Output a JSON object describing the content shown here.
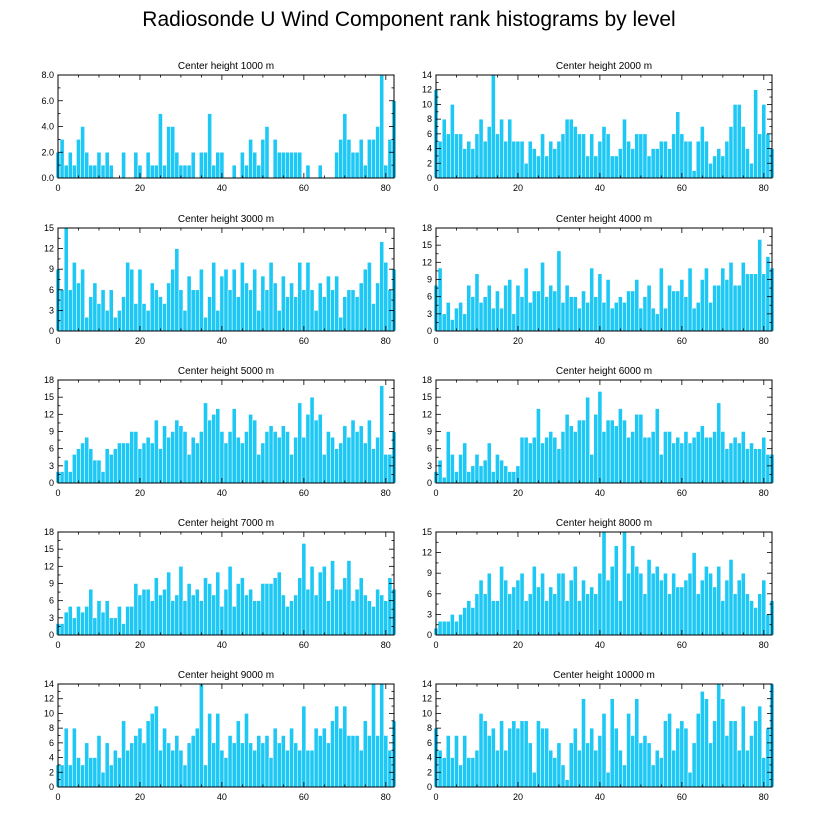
{
  "title": "Radiosonde U Wind Component rank histograms by level",
  "colors": {
    "bar": "#1ec8f5",
    "bar_edge": "#ffffff",
    "axis": "#000000"
  },
  "chart_data": [
    {
      "type": "bar",
      "title": "Center height 1000 m",
      "xlim": [
        0,
        82
      ],
      "ylim": [
        0,
        8
      ],
      "xticks": [
        "0",
        "20",
        "40",
        "60",
        "80"
      ],
      "yticks": [
        "0.0",
        "2.0",
        "4.0",
        "6.0",
        "8.0"
      ],
      "values": [
        2,
        3,
        1,
        2,
        1,
        3,
        4,
        2,
        1,
        1,
        2,
        1,
        2,
        1,
        0,
        0,
        2,
        0,
        0,
        2,
        1,
        0,
        2,
        1,
        1,
        5,
        1,
        4,
        4,
        2,
        1,
        1,
        1,
        2,
        0,
        2,
        2,
        5,
        1,
        2,
        2,
        0,
        0,
        1,
        0,
        2,
        1,
        3,
        2,
        1,
        3,
        4,
        0,
        3,
        2,
        2,
        2,
        2,
        2,
        2,
        0,
        1,
        0,
        0,
        1,
        0,
        0,
        0,
        2,
        3,
        5,
        3,
        2,
        2,
        3,
        1,
        3,
        3,
        4,
        8,
        1,
        3,
        6
      ]
    },
    {
      "type": "bar",
      "title": "Center height 2000 m",
      "xlim": [
        0,
        82
      ],
      "ylim": [
        0,
        14
      ],
      "xticks": [
        "0",
        "20",
        "40",
        "60",
        "80"
      ],
      "yticks": [
        "0",
        "2",
        "4",
        "6",
        "8",
        "10",
        "12",
        "14"
      ],
      "values": [
        12,
        5,
        8,
        6,
        10,
        6,
        6,
        4,
        5,
        4,
        6,
        8,
        5,
        7,
        14,
        6,
        8,
        5,
        8,
        5,
        5,
        5,
        2,
        5,
        4,
        3,
        6,
        3,
        5,
        4,
        5,
        6,
        8,
        8,
        7,
        6,
        6,
        3,
        6,
        3,
        5,
        7,
        6,
        3,
        3,
        4,
        8,
        5,
        4,
        6,
        6,
        6,
        3,
        4,
        4,
        5,
        5,
        4,
        6,
        9,
        6,
        5,
        5,
        1,
        5,
        7,
        5,
        2,
        3,
        4,
        3,
        5,
        7,
        10,
        10,
        7,
        4,
        2,
        12,
        6,
        10,
        6,
        4
      ]
    },
    {
      "type": "bar",
      "title": "Center height 3000 m",
      "xlim": [
        0,
        82
      ],
      "ylim": [
        0,
        15
      ],
      "xticks": [
        "0",
        "20",
        "40",
        "60",
        "80"
      ],
      "yticks": [
        "0",
        "3",
        "6",
        "9",
        "12",
        "15"
      ],
      "values": [
        9,
        6,
        15,
        6,
        10,
        7,
        9,
        2,
        5,
        7,
        4,
        6,
        3,
        6,
        2,
        3,
        5,
        10,
        9,
        4,
        9,
        4,
        3,
        7,
        6,
        5,
        4,
        7,
        9,
        12,
        6,
        3,
        8,
        6,
        6,
        9,
        2,
        5,
        10,
        3,
        8,
        9,
        6,
        9,
        5,
        10,
        7,
        6,
        9,
        3,
        8,
        6,
        10,
        7,
        3,
        8,
        5,
        7,
        5,
        10,
        6,
        10,
        6,
        3,
        7,
        5,
        8,
        6,
        8,
        2,
        5,
        6,
        6,
        5,
        7,
        9,
        10,
        4,
        7,
        13,
        10,
        6,
        9
      ]
    },
    {
      "type": "bar",
      "title": "Center height 4000 m",
      "xlim": [
        0,
        82
      ],
      "ylim": [
        0,
        18
      ],
      "xticks": [
        "0",
        "20",
        "40",
        "60",
        "80"
      ],
      "yticks": [
        "0",
        "3",
        "6",
        "9",
        "12",
        "15",
        "18"
      ],
      "values": [
        8,
        11,
        3,
        5,
        2,
        4,
        5,
        3,
        8,
        6,
        10,
        5,
        6,
        8,
        4,
        7,
        4,
        8,
        9,
        3,
        8,
        6,
        11,
        5,
        7,
        7,
        12,
        6,
        8,
        7,
        14,
        5,
        8,
        6,
        6,
        4,
        7,
        5,
        11,
        6,
        10,
        5,
        9,
        4,
        5,
        6,
        5,
        7,
        7,
        9,
        4,
        6,
        8,
        4,
        3,
        11,
        4,
        8,
        7,
        7,
        9,
        6,
        11,
        4,
        5,
        9,
        11,
        5,
        8,
        8,
        11,
        9,
        12,
        8,
        8,
        12,
        10,
        10,
        10,
        16,
        10,
        13,
        11
      ]
    },
    {
      "type": "bar",
      "title": "Center height 5000 m",
      "xlim": [
        0,
        82
      ],
      "ylim": [
        0,
        18
      ],
      "xticks": [
        "0",
        "20",
        "40",
        "60",
        "80"
      ],
      "yticks": [
        "0",
        "3",
        "6",
        "9",
        "12",
        "15",
        "18"
      ],
      "values": [
        2,
        2,
        4,
        2,
        5,
        6,
        7,
        8,
        6,
        4,
        4,
        2,
        6,
        5,
        6,
        7,
        7,
        7,
        9,
        9,
        6,
        7,
        8,
        7,
        11,
        6,
        10,
        8,
        9,
        11,
        10,
        9,
        5,
        8,
        7,
        9,
        14,
        11,
        12,
        13,
        9,
        7,
        9,
        13,
        8,
        7,
        9,
        12,
        11,
        5,
        7,
        9,
        10,
        9,
        8,
        10,
        9,
        5,
        8,
        14,
        8,
        12,
        15,
        11,
        12,
        5,
        9,
        8,
        6,
        7,
        10,
        8,
        11,
        9,
        10,
        7,
        11,
        6,
        8,
        17,
        5,
        5,
        9
      ]
    },
    {
      "type": "bar",
      "title": "Center height 6000 m",
      "xlim": [
        0,
        82
      ],
      "ylim": [
        0,
        18
      ],
      "xticks": [
        "0",
        "20",
        "40",
        "60",
        "80"
      ],
      "yticks": [
        "0",
        "3",
        "6",
        "9",
        "12",
        "15",
        "18"
      ],
      "values": [
        2,
        4,
        1,
        9,
        5,
        2,
        5,
        7,
        2,
        3,
        5,
        3,
        4,
        7,
        2,
        5,
        4,
        3,
        2,
        2,
        3,
        8,
        8,
        7,
        8,
        13,
        7,
        8,
        9,
        8,
        6,
        9,
        12,
        10,
        9,
        11,
        11,
        15,
        5,
        12,
        16,
        9,
        11,
        11,
        10,
        13,
        11,
        8,
        9,
        12,
        12,
        8,
        8,
        9,
        13,
        5,
        9,
        9,
        7,
        8,
        7,
        9,
        7,
        8,
        9,
        10,
        8,
        8,
        9,
        14,
        9,
        6,
        7,
        8,
        7,
        9,
        6,
        7,
        6,
        6,
        8,
        5,
        5
      ]
    },
    {
      "type": "bar",
      "title": "Center height 7000 m",
      "xlim": [
        0,
        82
      ],
      "ylim": [
        0,
        18
      ],
      "xticks": [
        "0",
        "20",
        "40",
        "60",
        "80"
      ],
      "yticks": [
        "0",
        "3",
        "6",
        "9",
        "12",
        "15",
        "18"
      ],
      "values": [
        2,
        2,
        4,
        5,
        3,
        5,
        4,
        5,
        8,
        3,
        6,
        4,
        6,
        3,
        3,
        5,
        2,
        5,
        5,
        9,
        7,
        8,
        8,
        6,
        10,
        7,
        8,
        11,
        6,
        7,
        12,
        6,
        9,
        7,
        8,
        6,
        10,
        9,
        7,
        11,
        5,
        8,
        12,
        5,
        9,
        10,
        7,
        8,
        6,
        6,
        9,
        9,
        9,
        10,
        11,
        7,
        5,
        6,
        7,
        10,
        16,
        8,
        12,
        7,
        11,
        12,
        6,
        13,
        8,
        8,
        10,
        13,
        6,
        8,
        10,
        7,
        6,
        5,
        8,
        7,
        6,
        10,
        8
      ]
    },
    {
      "type": "bar",
      "title": "Center height 8000 m",
      "xlim": [
        0,
        82
      ],
      "ylim": [
        0,
        15
      ],
      "xticks": [
        "0",
        "20",
        "40",
        "60",
        "80"
      ],
      "yticks": [
        "0",
        "3",
        "6",
        "9",
        "12",
        "15"
      ],
      "values": [
        1,
        2,
        2,
        2,
        3,
        2,
        3,
        4,
        5,
        4,
        6,
        8,
        6,
        9,
        5,
        5,
        10,
        8,
        6,
        7,
        8,
        9,
        5,
        6,
        10,
        7,
        9,
        5,
        7,
        6,
        9,
        9,
        5,
        8,
        10,
        5,
        8,
        6,
        7,
        6,
        9,
        15,
        8,
        10,
        13,
        5,
        15,
        9,
        13,
        10,
        9,
        6,
        11,
        9,
        10,
        8,
        9,
        6,
        9,
        7,
        7,
        8,
        9,
        12,
        6,
        8,
        10,
        9,
        7,
        10,
        5,
        8,
        11,
        6,
        8,
        9,
        6,
        5,
        4,
        6,
        8,
        3,
        5
      ]
    },
    {
      "type": "bar",
      "title": "Center height 9000 m",
      "xlim": [
        0,
        82
      ],
      "ylim": [
        0,
        14
      ],
      "xticks": [
        "0",
        "20",
        "40",
        "60",
        "80"
      ],
      "yticks": [
        "0",
        "2",
        "4",
        "6",
        "8",
        "10",
        "12",
        "14"
      ],
      "values": [
        3,
        3,
        8,
        3,
        8,
        4,
        3,
        6,
        4,
        4,
        7,
        2,
        6,
        3,
        5,
        4,
        9,
        5,
        6,
        7,
        8,
        6,
        9,
        10,
        11,
        5,
        8,
        6,
        5,
        7,
        5,
        3,
        6,
        7,
        8,
        14,
        3,
        10,
        6,
        10,
        5,
        4,
        7,
        6,
        9,
        6,
        10,
        6,
        5,
        7,
        6,
        7,
        4,
        8,
        6,
        7,
        5,
        8,
        6,
        5,
        11,
        5,
        5,
        8,
        7,
        8,
        6,
        9,
        11,
        8,
        11,
        7,
        7,
        7,
        5,
        9,
        7,
        14,
        7,
        14,
        7,
        5,
        9
      ]
    },
    {
      "type": "bar",
      "title": "Center height 10000 m",
      "xlim": [
        0,
        82
      ],
      "ylim": [
        0,
        14
      ],
      "xticks": [
        "0",
        "20",
        "40",
        "60",
        "80"
      ],
      "yticks": [
        "0",
        "2",
        "4",
        "6",
        "8",
        "10",
        "12",
        "14"
      ],
      "values": [
        8,
        5,
        4,
        7,
        4,
        7,
        3,
        7,
        4,
        4,
        5,
        10,
        9,
        7,
        8,
        5,
        9,
        5,
        8,
        9,
        8,
        9,
        9,
        6,
        2,
        9,
        8,
        8,
        5,
        4,
        6,
        3,
        1,
        6,
        8,
        5,
        12,
        6,
        8,
        5,
        7,
        10,
        2,
        12,
        8,
        5,
        3,
        10,
        7,
        12,
        6,
        7,
        6,
        3,
        5,
        4,
        9,
        10,
        5,
        8,
        9,
        8,
        2,
        6,
        10,
        13,
        12,
        6,
        9,
        14,
        12,
        7,
        9,
        9,
        5,
        11,
        5,
        7,
        9,
        11,
        4,
        8,
        14
      ]
    }
  ]
}
